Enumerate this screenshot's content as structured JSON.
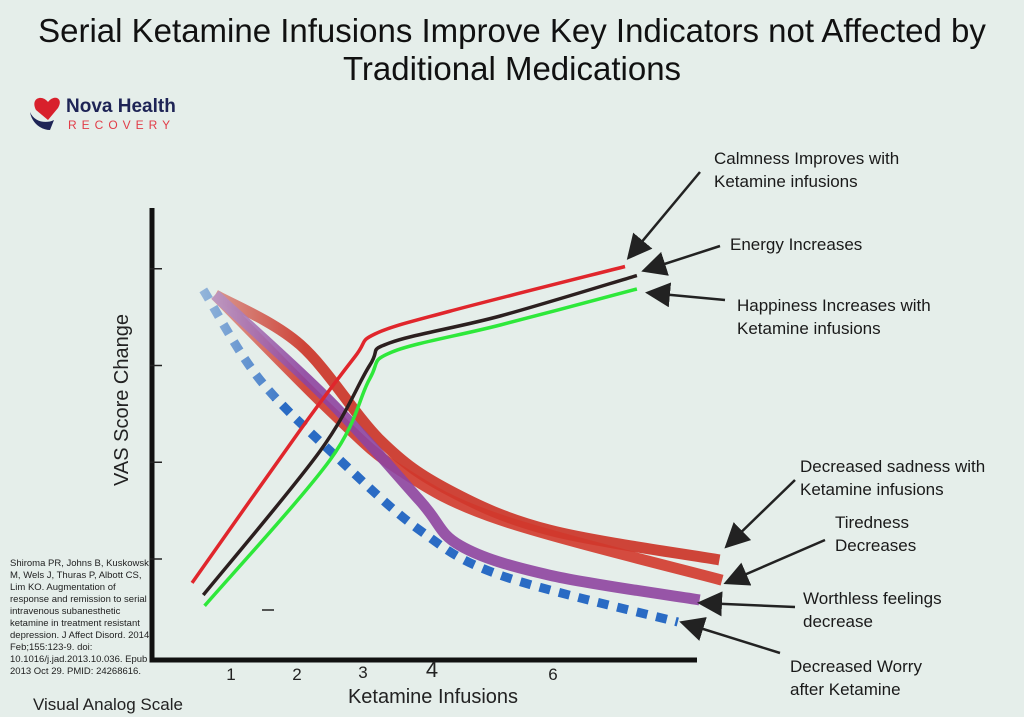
{
  "title": "Serial Ketamine Infusions Improve Key Indicators not Affected by Traditional Medications",
  "logo": {
    "line1": "Nova Health",
    "line2": "RECOVERY"
  },
  "citation": "Shiroma PR, Johns B, Kuskowski M, Wels J, Thuras P, Albott CS, Lim KO. Augmentation of response and remission to serial intravenous subanesthetic ketamine in treatment resistant depression. J Affect Disord. 2014 Feb;155:123-9. doi: 10.1016/j.jad.2013.10.036. Epub 2013 Oct 29. PMID: 24268616.",
  "footer_label": "Visual Analog Scale",
  "chart_data": {
    "type": "line",
    "title": "Serial Ketamine Infusions Improve Key Indicators not Affected by Traditional Medications",
    "xlabel": "Ketamine Infusions",
    "ylabel": "VAS Score Change",
    "xlim": [
      0,
      8.1
    ],
    "ylim": [
      0,
      100
    ],
    "x_ticks": [
      1,
      2,
      3,
      4,
      6
    ],
    "y_ticks": [
      22,
      43.5,
      65,
      86.5
    ],
    "grid": false,
    "legend": "none",
    "series": [
      {
        "name": "Calmness Improves with Ketamine infusions",
        "color": "#e0262c",
        "style": "solid",
        "x": [
          0.41,
          2.05,
          2.88,
          3.18,
          4.3,
          6.97
        ],
        "y": [
          16.7,
          50.7,
          67,
          72,
          77,
          87
        ]
      },
      {
        "name": "Energy Increases",
        "color": "#2b1f1f",
        "style": "solid",
        "x": [
          0.58,
          2.35,
          3.1,
          3.4,
          5.08,
          7.15
        ],
        "y": [
          14,
          46,
          65,
          70,
          76,
          85
        ]
      },
      {
        "name": "Happiness Increases with Ketamine infusions",
        "color": "#2ee83a",
        "style": "solid",
        "x": [
          0.6,
          2.5,
          3.1,
          3.44,
          5.08,
          7.15
        ],
        "y": [
          11.6,
          44,
          62,
          68,
          74,
          82
        ]
      },
      {
        "name": "Decreased sadness with Ketamine infusions",
        "color": "#cc3a2e",
        "style": "thick",
        "x": [
          0.76,
          2.05,
          3.26,
          4.3,
          5.83,
          8.4
        ],
        "y": [
          80.7,
          69.6,
          48.4,
          37.3,
          28.4,
          21.8
        ]
      },
      {
        "name": "Tiredness Decreases",
        "color": "#d2382c",
        "style": "thick",
        "x": [
          0.76,
          2.5,
          3.55,
          5.08,
          8.44
        ],
        "y": [
          80.7,
          55,
          41.8,
          30.7,
          17.3
        ]
      },
      {
        "name": "Worthless feelings decrease",
        "color": "#8e44a0",
        "style": "thick",
        "x": [
          0.76,
          2.5,
          3.86,
          4.47,
          5.83,
          8.1
        ],
        "y": [
          80.7,
          57,
          35,
          25,
          18.4,
          12.9
        ]
      },
      {
        "name": "Decreased Worry after Ketamine",
        "color": "#2a6bc4",
        "style": "dotted",
        "x": [
          0.58,
          1.44,
          2.65,
          3.86,
          5.08,
          7.77
        ],
        "y": [
          81.8,
          61.8,
          44,
          28.4,
          18.4,
          8
        ]
      }
    ]
  }
}
